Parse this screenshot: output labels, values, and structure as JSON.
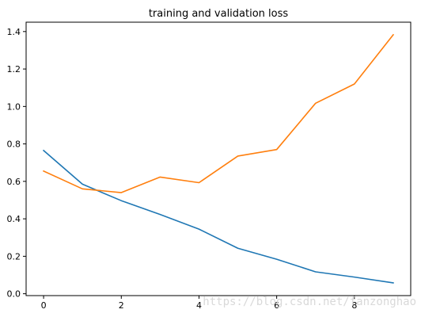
{
  "chart_data": {
    "type": "line",
    "title": "training and validation loss",
    "xlabel": "",
    "ylabel": "",
    "x": [
      0,
      1,
      2,
      3,
      4,
      5,
      6,
      7,
      8,
      9
    ],
    "series": [
      {
        "values": [
          0.765,
          0.585,
          0.497,
          0.423,
          0.345,
          0.243,
          0.184,
          0.117,
          0.089,
          0.058
        ],
        "color": "#1f77b4"
      },
      {
        "values": [
          0.655,
          0.56,
          0.54,
          0.623,
          0.593,
          0.735,
          0.77,
          1.017,
          1.12,
          1.383
        ],
        "color": "#ff7f0e"
      }
    ],
    "xlim": [
      -0.45,
      9.45
    ],
    "ylim": [
      -0.01,
      1.45
    ],
    "xticks": [
      0,
      2,
      4,
      6,
      8
    ],
    "xtick_labels": [
      "0",
      "2",
      "4",
      "6",
      "8"
    ],
    "yticks": [
      0.0,
      0.2,
      0.4,
      0.6,
      0.8,
      1.0,
      1.2,
      1.4
    ],
    "ytick_labels": [
      "0.0",
      "0.2",
      "0.4",
      "0.6",
      "0.8",
      "1.0",
      "1.2",
      "1.4"
    ],
    "grid": false,
    "legend": "none"
  },
  "watermark": "https://blog.csdn.net/fanzonghao"
}
